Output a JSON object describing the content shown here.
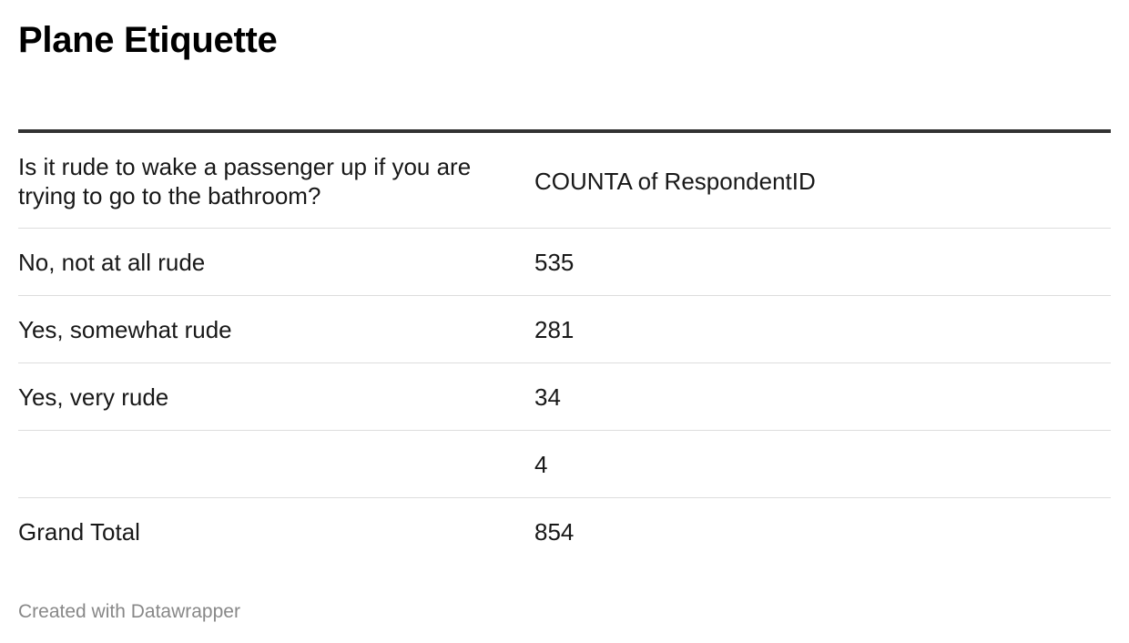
{
  "title": "Plane Etiquette",
  "chart_data": {
    "type": "table",
    "title": "Plane Etiquette",
    "columns": [
      "Is it rude to wake a passenger up if you are trying to go to the bathroom?",
      "COUNTA of RespondentID"
    ],
    "rows": [
      {
        "label": "No, not at all rude",
        "value": "535"
      },
      {
        "label": "Yes, somewhat rude",
        "value": "281"
      },
      {
        "label": "Yes, very rude",
        "value": "34"
      },
      {
        "label": "",
        "value": "4"
      },
      {
        "label": "Grand Total",
        "value": "854"
      }
    ]
  },
  "footer": "Created with Datawrapper"
}
